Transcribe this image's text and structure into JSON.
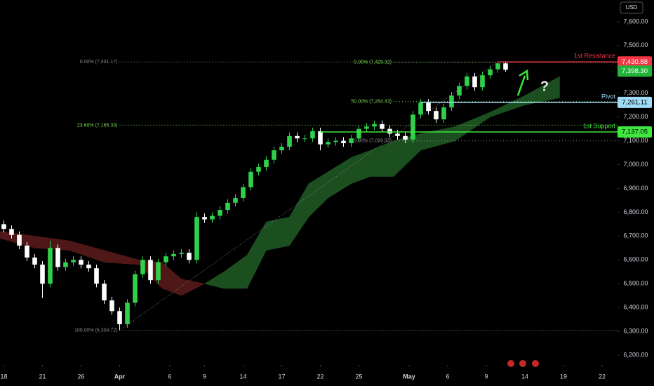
{
  "chart_data": {
    "type": "candlestick",
    "currency": "USD",
    "xlim": [
      0,
      160
    ],
    "ylim": [
      6159,
      7691
    ],
    "xticks": [
      {
        "value": 1,
        "label": "18"
      },
      {
        "value": 11,
        "label": "21"
      },
      {
        "value": 21,
        "label": "26"
      },
      {
        "value": 31,
        "label": "Apr"
      },
      {
        "value": 44,
        "label": "6"
      },
      {
        "value": 53,
        "label": "9"
      },
      {
        "value": 63,
        "label": "14"
      },
      {
        "value": 73,
        "label": "17"
      },
      {
        "value": 83,
        "label": "22"
      },
      {
        "value": 93,
        "label": "25"
      },
      {
        "value": 106,
        "label": "May"
      },
      {
        "value": 116,
        "label": "6"
      },
      {
        "value": 126,
        "label": "9"
      },
      {
        "value": 136,
        "label": "14"
      },
      {
        "value": 146,
        "label": "19"
      },
      {
        "value": 156,
        "label": "22"
      }
    ],
    "yticks": [
      {
        "value": 7600,
        "label": "7,600.00"
      },
      {
        "value": 7500,
        "label": "7,500.00"
      },
      {
        "value": 7300,
        "label": "7,300.00"
      },
      {
        "value": 7200,
        "label": "7,200.00"
      },
      {
        "value": 7100,
        "label": "7,100.00"
      },
      {
        "value": 7000,
        "label": "7,000.00"
      },
      {
        "value": 6900,
        "label": "6,900.00"
      },
      {
        "value": 6800,
        "label": "6,800.00"
      },
      {
        "value": 6700,
        "label": "6,700.00"
      },
      {
        "value": 6600,
        "label": "6,600.00"
      },
      {
        "value": 6500,
        "label": "6,500.00"
      },
      {
        "value": 6400,
        "label": "6,400.00"
      },
      {
        "value": 6300,
        "label": "6,300.00"
      },
      {
        "value": 6200,
        "label": "6,200.00"
      }
    ],
    "up_color": "#2fd14a",
    "down_color": "#ffffff",
    "x": [
      1,
      3,
      5,
      7,
      9,
      11,
      13,
      15,
      17,
      19,
      21,
      23,
      25,
      27,
      29,
      31,
      33,
      35,
      37,
      39,
      41,
      43,
      45,
      47,
      49,
      51,
      53,
      55,
      57,
      59,
      61,
      63,
      65,
      67,
      69,
      71,
      73,
      75,
      77,
      79,
      81,
      83,
      85,
      87,
      89,
      91,
      93,
      95,
      97,
      99,
      101,
      103,
      105,
      107,
      109,
      111,
      113,
      115,
      117,
      119,
      121,
      123,
      125,
      127,
      129,
      131
    ],
    "open": [
      6750,
      6730,
      6705,
      6660,
      6610,
      6580,
      6500,
      6650,
      6570,
      6590,
      6600,
      6580,
      6565,
      6500,
      6430,
      6385,
      6330,
      6420,
      6540,
      6600,
      6515,
      6590,
      6615,
      6625,
      6630,
      6600,
      6780,
      6770,
      6785,
      6810,
      6840,
      6860,
      6905,
      6970,
      6990,
      7020,
      7060,
      7075,
      7120,
      7110,
      7110,
      7140,
      7085,
      7095,
      7100,
      7090,
      7110,
      7150,
      7160,
      7170,
      7150,
      7130,
      7120,
      7105,
      7210,
      7260,
      7225,
      7190,
      7240,
      7290,
      7330,
      7370,
      7325,
      7375,
      7400,
      7425
    ],
    "high": [
      6765,
      6745,
      6720,
      6675,
      6625,
      6595,
      6680,
      6665,
      6605,
      6615,
      6615,
      6595,
      6580,
      6515,
      6445,
      6400,
      6435,
      6555,
      6615,
      6615,
      6605,
      6630,
      6640,
      6645,
      6645,
      6800,
      6795,
      6800,
      6825,
      6855,
      6875,
      6920,
      6985,
      7005,
      7035,
      7075,
      7090,
      7135,
      7135,
      7125,
      7155,
      7155,
      7110,
      7115,
      7115,
      7125,
      7165,
      7175,
      7185,
      7185,
      7165,
      7145,
      7135,
      7225,
      7275,
      7275,
      7240,
      7255,
      7305,
      7345,
      7385,
      7385,
      7390,
      7415,
      7431,
      7430
    ],
    "low": [
      6715,
      6690,
      6645,
      6595,
      6565,
      6440,
      6485,
      6555,
      6555,
      6575,
      6565,
      6550,
      6485,
      6415,
      6370,
      6305,
      6315,
      6405,
      6525,
      6500,
      6500,
      6575,
      6600,
      6610,
      6585,
      6585,
      6755,
      6755,
      6770,
      6795,
      6825,
      6845,
      6890,
      6955,
      6975,
      7005,
      7045,
      7060,
      7095,
      7095,
      7095,
      7060,
      7070,
      7080,
      7075,
      7075,
      7095,
      7135,
      7145,
      7135,
      7115,
      7105,
      7090,
      7090,
      7195,
      7210,
      7175,
      7175,
      7225,
      7275,
      7315,
      7310,
      7310,
      7360,
      7385,
      7390
    ],
    "close": [
      6730,
      6705,
      6660,
      6610,
      6580,
      6500,
      6650,
      6570,
      6590,
      6600,
      6580,
      6565,
      6500,
      6430,
      6385,
      6330,
      6420,
      6540,
      6600,
      6515,
      6590,
      6615,
      6625,
      6630,
      6600,
      6780,
      6770,
      6785,
      6810,
      6840,
      6860,
      6905,
      6970,
      6990,
      7020,
      7060,
      7075,
      7120,
      7110,
      7110,
      7140,
      7085,
      7095,
      7100,
      7090,
      7110,
      7150,
      7160,
      7170,
      7150,
      7130,
      7120,
      7105,
      7210,
      7260,
      7225,
      7190,
      7240,
      7290,
      7330,
      7370,
      7325,
      7375,
      7400,
      7425,
      7398.3
    ],
    "last_label": "7,398.30",
    "last_color": "#22b33a",
    "cloud": {
      "x": [
        0,
        9,
        18,
        27,
        36,
        42,
        47,
        53,
        58,
        64,
        69,
        75,
        80,
        85,
        91,
        96,
        102,
        109,
        118,
        127,
        136,
        145
      ],
      "span_a": [
        6690,
        6650,
        6640,
        6590,
        6580,
        6480,
        6450,
        6500,
        6550,
        6620,
        6760,
        6780,
        6920,
        6970,
        7030,
        7060,
        7100,
        7130,
        7160,
        7220,
        7290,
        7370
      ],
      "span_b": [
        6720,
        6700,
        6680,
        6640,
        6600,
        6590,
        6520,
        6500,
        6480,
        6480,
        6640,
        6660,
        6780,
        6860,
        6920,
        6950,
        6950,
        7060,
        7100,
        7200,
        7250,
        7280
      ],
      "bull_color": "#1c4f1f",
      "bear_color": "#4f1717"
    },
    "fibs": [
      {
        "x": 31,
        "x_end": 129,
        "levels": [
          {
            "value": 7431.17,
            "label": "0.00% (7,431.17)",
            "color": "#8a8a8a"
          },
          {
            "value": 7165.33,
            "label": "23.60% (7,165.33)",
            "color": "#7ed957"
          },
          {
            "value": 6304.72,
            "label": "100.00% (6,304.72)",
            "color": "#8a8a8a"
          }
        ]
      },
      {
        "x": 102,
        "levels": [
          {
            "value": 7429.32,
            "label": "0.00% (7,429.32)",
            "color": "#7ed957"
          },
          {
            "value": 7264.43,
            "label": "50.00% (7,264.43)",
            "color": "#7ed957"
          },
          {
            "value": 7099.53,
            "label": "0.00% (7,099.53)",
            "color": "#8a8a8a"
          }
        ]
      }
    ],
    "levels": [
      {
        "name": "1st Resistance",
        "value": 7430.88,
        "value_label": "7,430.88",
        "color": "#f23645",
        "x": 129
      },
      {
        "name": "Pivot",
        "value": 7261.11,
        "value_label": "7,261.11",
        "color": "#9fdcf5",
        "x": 109
      },
      {
        "name": "1st Support",
        "value": 7137.05,
        "value_label": "7,137.05",
        "color": "#3ee83e",
        "x": 83
      }
    ]
  }
}
